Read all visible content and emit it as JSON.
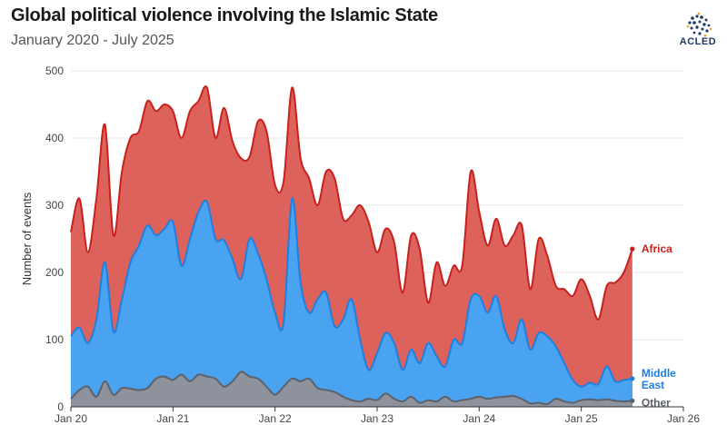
{
  "title": "Global political violence involving the Islamic State",
  "subtitle": "January 2020 - July 2025",
  "logo": {
    "text": "ACLED",
    "icon": "acled-logo-icon",
    "color": "#1f3864"
  },
  "chart_data": {
    "type": "area",
    "stacked": true,
    "ylabel": "Number of events",
    "xlabel": "",
    "ylim": [
      0,
      500
    ],
    "y_ticks": [
      0,
      100,
      200,
      300,
      400,
      500
    ],
    "x_ticks": [
      "2020-01",
      "2021-01",
      "2022-01",
      "2023-01",
      "2024-01",
      "2025-01",
      "2026-01"
    ],
    "x_tick_labels": [
      "Jan 20",
      "Jan 21",
      "Jan 22",
      "Jan 23",
      "Jan 24",
      "Jan 25",
      "Jan 26"
    ],
    "xlim": [
      "2020-01",
      "2026-01"
    ],
    "grid": "horizontal",
    "x": [
      "2020-01",
      "2020-02",
      "2020-03",
      "2020-04",
      "2020-05",
      "2020-06",
      "2020-07",
      "2020-08",
      "2020-09",
      "2020-10",
      "2020-11",
      "2020-12",
      "2021-01",
      "2021-02",
      "2021-03",
      "2021-04",
      "2021-05",
      "2021-06",
      "2021-07",
      "2021-08",
      "2021-09",
      "2021-10",
      "2021-11",
      "2021-12",
      "2022-01",
      "2022-02",
      "2022-03",
      "2022-04",
      "2022-05",
      "2022-06",
      "2022-07",
      "2022-08",
      "2022-09",
      "2022-10",
      "2022-11",
      "2022-12",
      "2023-01",
      "2023-02",
      "2023-03",
      "2023-04",
      "2023-05",
      "2023-06",
      "2023-07",
      "2023-08",
      "2023-09",
      "2023-10",
      "2023-11",
      "2023-12",
      "2024-01",
      "2024-02",
      "2024-03",
      "2024-04",
      "2024-05",
      "2024-06",
      "2024-07",
      "2024-08",
      "2024-09",
      "2024-10",
      "2024-11",
      "2024-12",
      "2025-01",
      "2025-02",
      "2025-03",
      "2025-04",
      "2025-05",
      "2025-06",
      "2025-07"
    ],
    "series": [
      {
        "name": "Other",
        "color": "#8e929c",
        "values": [
          12,
          25,
          30,
          15,
          38,
          18,
          28,
          27,
          25,
          28,
          42,
          45,
          40,
          48,
          38,
          48,
          45,
          42,
          30,
          38,
          52,
          45,
          42,
          30,
          18,
          30,
          42,
          38,
          42,
          28,
          25,
          22,
          15,
          10,
          8,
          12,
          10,
          20,
          12,
          8,
          15,
          6,
          10,
          8,
          15,
          8,
          10,
          12,
          15,
          12,
          14,
          15,
          16,
          12,
          5,
          6,
          4,
          12,
          8,
          6,
          10,
          11,
          10,
          11,
          9,
          8,
          9
        ]
      },
      {
        "name": "Middle East",
        "color": "#4aa3f0",
        "values": [
          105,
          118,
          95,
          130,
          215,
          112,
          160,
          215,
          240,
          270,
          255,
          265,
          275,
          210,
          250,
          290,
          305,
          250,
          248,
          220,
          190,
          250,
          228,
          190,
          140,
          125,
          310,
          185,
          140,
          160,
          170,
          120,
          130,
          160,
          100,
          55,
          80,
          110,
          95,
          55,
          85,
          65,
          95,
          75,
          60,
          100,
          95,
          160,
          165,
          140,
          165,
          115,
          95,
          130,
          85,
          110,
          105,
          90,
          65,
          40,
          30,
          36,
          34,
          60,
          38,
          40,
          42
        ]
      },
      {
        "name": "Africa",
        "color": "#de625c",
        "values": [
          260,
          310,
          230,
          310,
          420,
          255,
          350,
          400,
          410,
          455,
          440,
          450,
          440,
          400,
          440,
          455,
          475,
          400,
          445,
          395,
          370,
          372,
          425,
          410,
          330,
          335,
          475,
          370,
          340,
          300,
          350,
          340,
          280,
          285,
          300,
          275,
          230,
          265,
          245,
          170,
          255,
          235,
          155,
          215,
          180,
          210,
          210,
          350,
          290,
          240,
          280,
          240,
          255,
          270,
          175,
          250,
          225,
          180,
          175,
          165,
          190,
          165,
          130,
          180,
          185,
          200,
          235
        ]
      }
    ],
    "labels": [
      "Africa",
      "Middle East",
      "Other"
    ]
  }
}
